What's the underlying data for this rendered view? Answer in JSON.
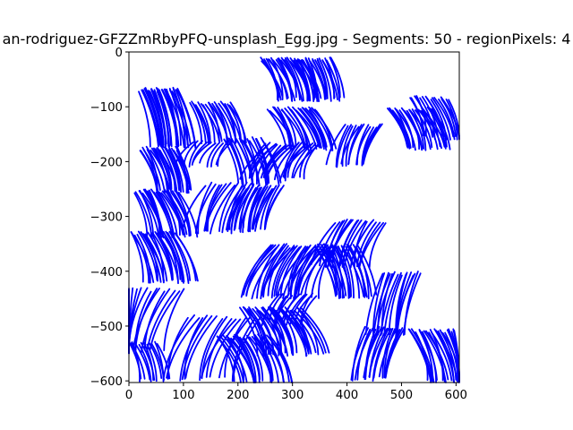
{
  "chart_data": {
    "type": "line",
    "title": "an-rodriguez-GFZZmRbyPFQ-unsplash_Egg.jpg - Segments: 50 - regionPixels: 4",
    "xlabel": "",
    "ylabel": "",
    "xlim": [
      0,
      606
    ],
    "ylim": [
      -603,
      0
    ],
    "x_ticks": [
      0,
      100,
      200,
      300,
      400,
      500,
      600
    ],
    "x_tick_labels": [
      "0",
      "100",
      "200",
      "300",
      "400",
      "500",
      "600"
    ],
    "y_ticks": [
      0,
      -100,
      -200,
      -300,
      -400,
      -500,
      -600
    ],
    "y_tick_labels": [
      "0",
      "−100",
      "−200",
      "−300",
      "−400",
      "−500",
      "−600"
    ],
    "grid": false,
    "line_color": "#0000ff",
    "clusters": [
      {
        "cx": 55,
        "cy": -120,
        "w": 70,
        "h": 110,
        "dir": 1,
        "n": 30
      },
      {
        "cx": 55,
        "cy": -215,
        "w": 70,
        "h": 85,
        "dir": 1,
        "n": 24
      },
      {
        "cx": 50,
        "cy": -295,
        "w": 80,
        "h": 90,
        "dir": 1,
        "n": 24
      },
      {
        "cx": 45,
        "cy": -375,
        "w": 85,
        "h": 95,
        "dir": 1,
        "n": 24
      },
      {
        "cx": 45,
        "cy": -490,
        "w": 110,
        "h": 120,
        "dir": -1,
        "n": 14
      },
      {
        "cx": 25,
        "cy": -565,
        "w": 55,
        "h": 75,
        "dir": 1,
        "n": 12
      },
      {
        "cx": 150,
        "cy": -130,
        "w": 75,
        "h": 80,
        "dir": 1,
        "n": 20
      },
      {
        "cx": 155,
        "cy": -185,
        "w": 70,
        "h": 50,
        "dir": -1,
        "n": 10
      },
      {
        "cx": 190,
        "cy": -285,
        "w": 95,
        "h": 95,
        "dir": -1,
        "n": 14
      },
      {
        "cx": 175,
        "cy": -540,
        "w": 130,
        "h": 120,
        "dir": -1,
        "n": 16
      },
      {
        "cx": 280,
        "cy": -50,
        "w": 80,
        "h": 80,
        "dir": 1,
        "n": 26
      },
      {
        "cx": 340,
        "cy": -50,
        "w": 60,
        "h": 80,
        "dir": 1,
        "n": 20
      },
      {
        "cx": 300,
        "cy": -140,
        "w": 90,
        "h": 80,
        "dir": 1,
        "n": 24
      },
      {
        "cx": 300,
        "cy": -200,
        "w": 100,
        "h": 70,
        "dir": -1,
        "n": 22
      },
      {
        "cx": 210,
        "cy": -200,
        "w": 70,
        "h": 90,
        "dir": 1,
        "n": 16
      },
      {
        "cx": 245,
        "cy": -285,
        "w": 75,
        "h": 85,
        "dir": -1,
        "n": 20
      },
      {
        "cx": 320,
        "cy": -400,
        "w": 120,
        "h": 100,
        "dir": -1,
        "n": 30
      },
      {
        "cx": 380,
        "cy": -400,
        "w": 80,
        "h": 100,
        "dir": 1,
        "n": 22
      },
      {
        "cx": 425,
        "cy": -350,
        "w": 90,
        "h": 90,
        "dir": -1,
        "n": 18
      },
      {
        "cx": 430,
        "cy": -170,
        "w": 70,
        "h": 80,
        "dir": -1,
        "n": 14
      },
      {
        "cx": 515,
        "cy": -140,
        "w": 80,
        "h": 80,
        "dir": 1,
        "n": 20
      },
      {
        "cx": 550,
        "cy": -120,
        "w": 70,
        "h": 80,
        "dir": 1,
        "n": 16
      },
      {
        "cx": 500,
        "cy": -460,
        "w": 70,
        "h": 120,
        "dir": -1,
        "n": 16
      },
      {
        "cx": 470,
        "cy": -550,
        "w": 70,
        "h": 100,
        "dir": -1,
        "n": 18
      },
      {
        "cx": 555,
        "cy": -555,
        "w": 85,
        "h": 100,
        "dir": 1,
        "n": 24
      },
      {
        "cx": 260,
        "cy": -510,
        "w": 110,
        "h": 90,
        "dir": 1,
        "n": 30
      },
      {
        "cx": 210,
        "cy": -560,
        "w": 100,
        "h": 90,
        "dir": 1,
        "n": 24
      },
      {
        "cx": 310,
        "cy": -470,
        "w": 70,
        "h": 60,
        "dir": -1,
        "n": 12
      }
    ]
  }
}
